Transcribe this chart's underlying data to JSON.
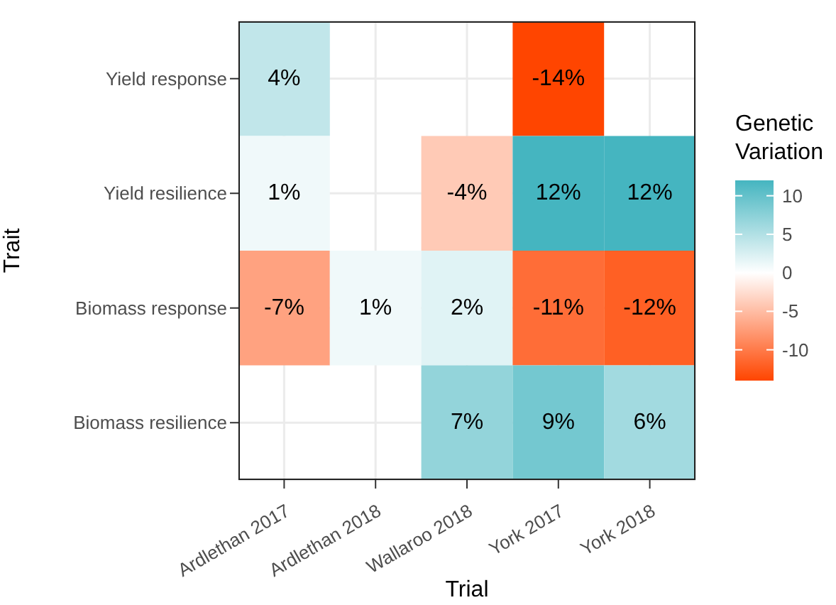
{
  "chart_data": {
    "type": "heatmap",
    "xlabel": "Trial",
    "ylabel": "Trait",
    "legend_title": "Genetic Variation",
    "grid": true,
    "categories": [
      "Ardlethan 2017",
      "Ardlethan 2018",
      "Wallaroo 2018",
      "York 2017",
      "York 2018"
    ],
    "y_categories": [
      "Yield response",
      "Yield resilience",
      "Biomass response",
      "Biomass resilience"
    ],
    "cells": [
      [
        4,
        null,
        null,
        -14,
        null
      ],
      [
        1,
        null,
        -4,
        12,
        12
      ],
      [
        -7,
        1,
        2,
        -11,
        -12
      ],
      [
        null,
        null,
        7,
        9,
        6
      ]
    ],
    "cell_labels": [
      [
        "4%",
        null,
        null,
        "-14%",
        null
      ],
      [
        "1%",
        null,
        "-4%",
        "12%",
        "12%"
      ],
      [
        "-7%",
        "1%",
        "2%",
        "-11%",
        "-12%"
      ],
      [
        null,
        null,
        "7%",
        "9%",
        "6%"
      ]
    ],
    "clim": [
      -14,
      12
    ],
    "cticks": [
      10,
      5,
      0,
      -5,
      -10
    ],
    "colors": [
      "#ff4500",
      "#ffffff",
      "#45b5c0"
    ]
  }
}
